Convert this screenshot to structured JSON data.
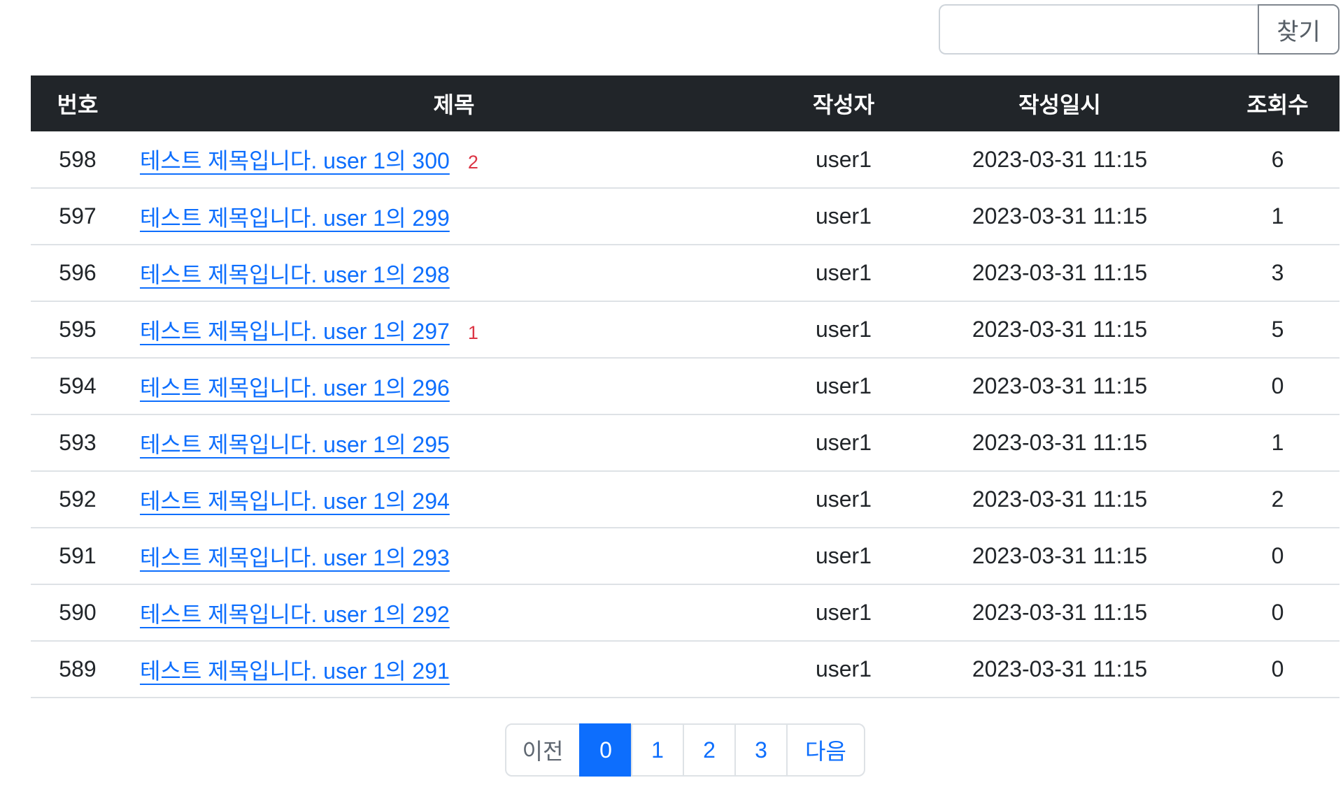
{
  "search": {
    "value": "",
    "placeholder": "",
    "button_label": "찾기"
  },
  "table": {
    "headers": [
      "번호",
      "제목",
      "작성자",
      "작성일시",
      "조회수"
    ],
    "rows": [
      {
        "no": "598",
        "title": "테스트 제목입니다. user 1의 300",
        "comments": "2",
        "author": "user1",
        "date": "2023-03-31 11:15",
        "views": "6"
      },
      {
        "no": "597",
        "title": "테스트 제목입니다. user 1의 299",
        "comments": "",
        "author": "user1",
        "date": "2023-03-31 11:15",
        "views": "1"
      },
      {
        "no": "596",
        "title": "테스트 제목입니다. user 1의 298",
        "comments": "",
        "author": "user1",
        "date": "2023-03-31 11:15",
        "views": "3"
      },
      {
        "no": "595",
        "title": "테스트 제목입니다. user 1의 297",
        "comments": "1",
        "author": "user1",
        "date": "2023-03-31 11:15",
        "views": "5"
      },
      {
        "no": "594",
        "title": "테스트 제목입니다. user 1의 296",
        "comments": "",
        "author": "user1",
        "date": "2023-03-31 11:15",
        "views": "0"
      },
      {
        "no": "593",
        "title": "테스트 제목입니다. user 1의 295",
        "comments": "",
        "author": "user1",
        "date": "2023-03-31 11:15",
        "views": "1"
      },
      {
        "no": "592",
        "title": "테스트 제목입니다. user 1의 294",
        "comments": "",
        "author": "user1",
        "date": "2023-03-31 11:15",
        "views": "2"
      },
      {
        "no": "591",
        "title": "테스트 제목입니다. user 1의 293",
        "comments": "",
        "author": "user1",
        "date": "2023-03-31 11:15",
        "views": "0"
      },
      {
        "no": "590",
        "title": "테스트 제목입니다. user 1의 292",
        "comments": "",
        "author": "user1",
        "date": "2023-03-31 11:15",
        "views": "0"
      },
      {
        "no": "589",
        "title": "테스트 제목입니다. user 1의 291",
        "comments": "",
        "author": "user1",
        "date": "2023-03-31 11:15",
        "views": "0"
      }
    ]
  },
  "pagination": {
    "prev_label": "이전",
    "next_label": "다음",
    "pages": [
      "0",
      "1",
      "2",
      "3"
    ],
    "active_page": "0"
  },
  "colors": {
    "accent": "#0d6efd",
    "header_bg": "#212529",
    "danger": "#dc3545",
    "border": "#dee2e6"
  }
}
